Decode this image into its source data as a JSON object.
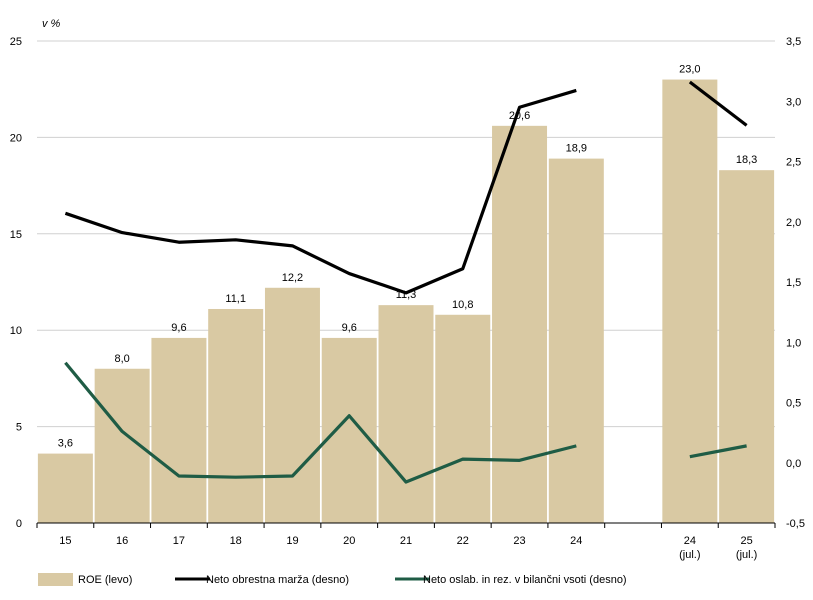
{
  "chart_data": {
    "type": "bar",
    "unit_label": "v %",
    "categories": [
      "15",
      "16",
      "17",
      "18",
      "19",
      "20",
      "21",
      "22",
      "23",
      "24",
      "",
      "24\n(jul.)",
      "25\n(jul.)"
    ],
    "series": [
      {
        "name": "ROE (levo)",
        "type": "bar",
        "axis": "left",
        "color": "#d9c9a3",
        "values": [
          3.6,
          8.0,
          9.6,
          11.1,
          12.2,
          9.6,
          11.3,
          10.8,
          20.6,
          18.9,
          null,
          23.0,
          18.3
        ],
        "labels": [
          "3,6",
          "8,0",
          "9,6",
          "11,1",
          "12,2",
          "9,6",
          "11,3",
          "10,8",
          "20,6",
          "18,9",
          "",
          "23,0",
          "18,3"
        ]
      },
      {
        "name": "Neto obrestna marža (desno)",
        "type": "line",
        "axis": "right",
        "color": "#000000",
        "values": [
          2.07,
          1.91,
          1.83,
          1.85,
          1.8,
          1.57,
          1.41,
          1.61,
          2.95,
          3.09,
          null,
          3.16,
          2.8
        ]
      },
      {
        "name": "Neto oslab. in rez. v bilančni vsoti (desno)",
        "type": "line",
        "axis": "right",
        "color": "#1f5c45",
        "values": [
          0.83,
          0.26,
          -0.11,
          -0.12,
          -0.11,
          0.39,
          -0.16,
          0.03,
          0.02,
          0.14,
          null,
          0.05,
          0.14
        ]
      }
    ],
    "y_left": {
      "min": 0,
      "max": 25,
      "ticks": [
        0,
        5,
        10,
        15,
        20,
        25
      ],
      "tick_labels": [
        "0",
        "5",
        "10",
        "15",
        "20",
        "25"
      ]
    },
    "y_right": {
      "min": -0.5,
      "max": 3.5,
      "ticks": [
        -0.5,
        0.0,
        0.5,
        1.0,
        1.5,
        2.0,
        2.5,
        3.0,
        3.5
      ],
      "tick_labels": [
        "-0,5",
        "0,0",
        "0,5",
        "1,0",
        "1,5",
        "2,0",
        "2,5",
        "3,0",
        "3,5"
      ]
    },
    "grid": "horizontal",
    "legend_position": "bottom"
  }
}
